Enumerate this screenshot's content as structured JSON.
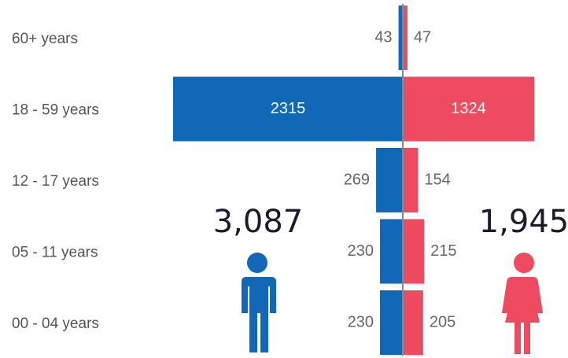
{
  "chart_data": {
    "type": "pyramid",
    "categories": [
      "60+ years",
      "18 - 59 years",
      "12 - 17 years",
      "05 - 11 years",
      "00 - 04 years"
    ],
    "series": [
      {
        "name": "Male",
        "color": "#1068b7",
        "values": [
          43,
          2315,
          269,
          230,
          230
        ],
        "total_label": "3,087"
      },
      {
        "name": "Female",
        "color": "#ee4a60",
        "values": [
          47,
          1324,
          154,
          215,
          205
        ],
        "total_label": "1,945"
      }
    ]
  }
}
